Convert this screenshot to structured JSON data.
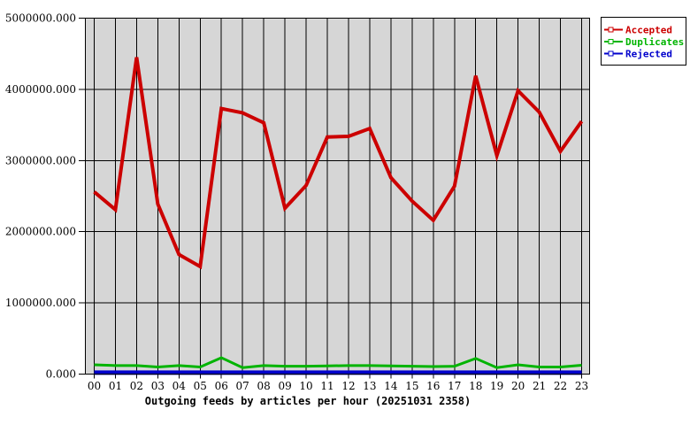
{
  "chart_data": {
    "type": "line",
    "title": "Outgoing feeds by articles per hour (20251031 2358)",
    "xlabel": "",
    "ylabel": "",
    "x": [
      "00",
      "01",
      "02",
      "03",
      "04",
      "05",
      "06",
      "07",
      "08",
      "09",
      "10",
      "11",
      "12",
      "13",
      "14",
      "15",
      "16",
      "17",
      "18",
      "19",
      "20",
      "21",
      "22",
      "23"
    ],
    "ylim": [
      0,
      5000000
    ],
    "y_ticks": [
      0,
      1000000,
      2000000,
      3000000,
      4000000,
      5000000
    ],
    "y_tick_labels": [
      "0.000",
      "1000000.000",
      "2000000.000",
      "3000000.000",
      "4000000.000",
      "5000000.000"
    ],
    "grid": true,
    "grid_color": "#000000",
    "plot_background": "#d6d6d6",
    "page_background": "#ffffff",
    "legend_position": "top-right",
    "series": [
      {
        "name": "Accepted",
        "color": "#cc0000",
        "values": [
          2560000,
          2310000,
          4450000,
          2390000,
          1680000,
          1510000,
          3730000,
          3670000,
          3530000,
          2330000,
          2650000,
          3330000,
          3340000,
          3450000,
          2760000,
          2430000,
          2160000,
          2640000,
          4190000,
          3070000,
          3980000,
          3680000,
          3130000,
          3550000
        ]
      },
      {
        "name": "Duplicates",
        "color": "#00b400",
        "values": [
          130000,
          120000,
          120000,
          100000,
          120000,
          100000,
          230000,
          90000,
          120000,
          110000,
          110000,
          115000,
          120000,
          120000,
          115000,
          110000,
          105000,
          110000,
          220000,
          90000,
          130000,
          100000,
          100000,
          125000
        ]
      },
      {
        "name": "Rejected",
        "color": "#0000cc",
        "values": [
          20000,
          20000,
          20000,
          20000,
          20000,
          20000,
          20000,
          20000,
          20000,
          20000,
          20000,
          20000,
          20000,
          20000,
          20000,
          20000,
          20000,
          20000,
          20000,
          20000,
          20000,
          20000,
          20000,
          20000
        ]
      }
    ]
  }
}
